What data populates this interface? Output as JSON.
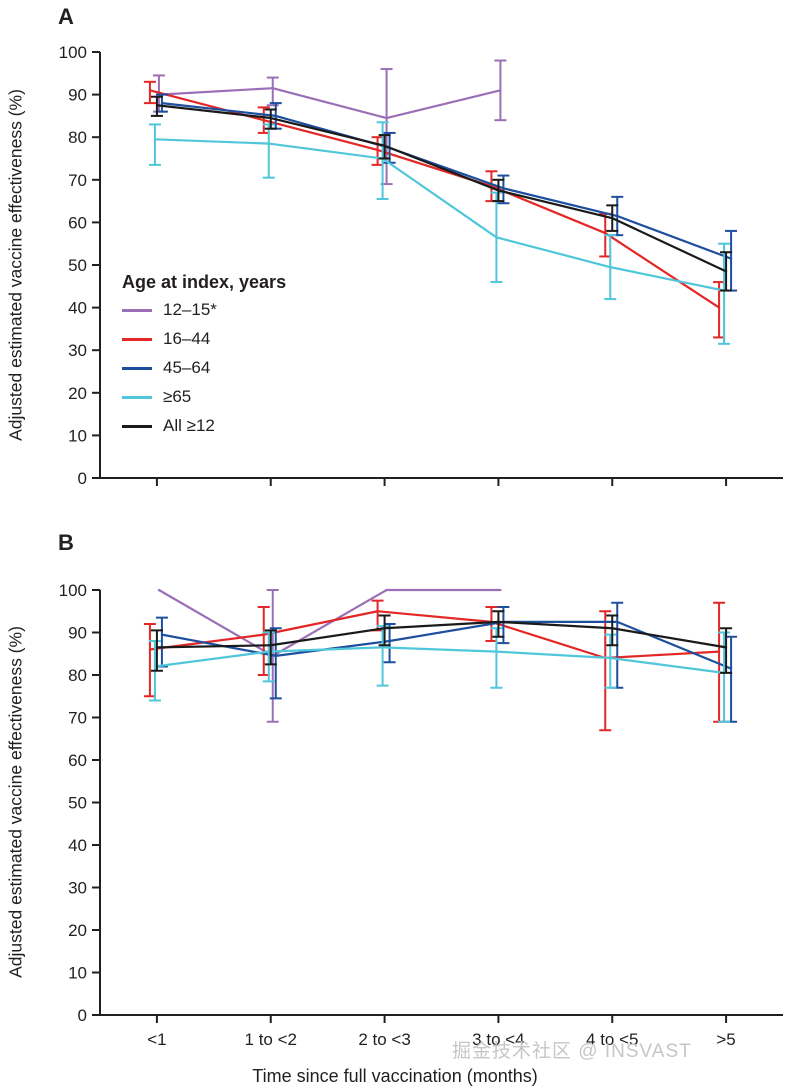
{
  "figure": {
    "panels": [
      {
        "label": "A"
      },
      {
        "label": "B"
      }
    ],
    "y_axis_label": "Adjusted estimated vaccine effectiveness (%)",
    "x_axis_label": "Time since full vaccination (months)",
    "watermark": "掘金技术社区 @ INSVAST"
  },
  "chart_data": [
    {
      "type": "line",
      "panel": "A",
      "title": "",
      "categories": [
        "<1",
        "1 to <2",
        "2 to <3",
        "3 to <4",
        "4 to <5",
        ">5"
      ],
      "ylim": [
        0,
        100
      ],
      "ytick_step": 10,
      "grid": false,
      "legend_title": "Age at index, years",
      "legend_position": "left-middle-inside",
      "error_bars": true,
      "series": [
        {
          "name": "12–15*",
          "color": "#9b6fb6",
          "values": [
            90,
            91.5,
            84.5,
            91,
            null,
            null
          ],
          "lower": [
            86,
            87.5,
            69,
            84,
            null,
            null
          ],
          "upper": [
            94.5,
            94,
            96,
            98,
            null,
            null
          ]
        },
        {
          "name": "16–44",
          "color": "#e32726",
          "values": [
            91,
            84,
            77,
            68.5,
            57.5,
            40
          ],
          "lower": [
            88,
            81,
            73.5,
            65,
            52,
            33
          ],
          "upper": [
            93,
            87,
            80,
            72,
            62,
            46
          ]
        },
        {
          "name": "45–64",
          "color": "#1e4f9e",
          "values": [
            88,
            85,
            77.5,
            68,
            61.5,
            51.5
          ],
          "lower": [
            86,
            82,
            74,
            64.5,
            57,
            44
          ],
          "upper": [
            90,
            88,
            81,
            71,
            66,
            58
          ]
        },
        {
          "name": "≥65",
          "color": "#4fc6da",
          "values": [
            79.5,
            78.5,
            75,
            56.5,
            49.5,
            44
          ],
          "lower": [
            73.5,
            70.5,
            65.5,
            46,
            42,
            31.5
          ],
          "upper": [
            83,
            83,
            83.5,
            67,
            57,
            55
          ]
        },
        {
          "name": "All ≥12",
          "color": "#1a1a1a",
          "values": [
            87.5,
            84.5,
            78,
            67.5,
            61,
            48.5
          ],
          "lower": [
            85,
            82,
            75,
            65,
            58,
            44
          ],
          "upper": [
            89.5,
            86.5,
            80.5,
            70,
            64,
            53
          ]
        }
      ]
    },
    {
      "type": "line",
      "panel": "B",
      "title": "",
      "categories": [
        "<1",
        "1 to <2",
        "2 to <3",
        "3 to <4",
        "4 to <5",
        ">5"
      ],
      "ylim": [
        0,
        100
      ],
      "ytick_step": 10,
      "grid": false,
      "legend_title": "",
      "legend_position": "none",
      "error_bars": true,
      "series": [
        {
          "name": "12–15*",
          "color": "#9b6fb6",
          "values": [
            100,
            84.5,
            100,
            100,
            null,
            null
          ],
          "lower": [
            null,
            69,
            null,
            null,
            null,
            null
          ],
          "upper": [
            null,
            100,
            null,
            null,
            null,
            null
          ]
        },
        {
          "name": "16–44",
          "color": "#e32726",
          "values": [
            86,
            89.5,
            95,
            92.5,
            84,
            85.5
          ],
          "lower": [
            75,
            80,
            90.5,
            88,
            67,
            69
          ],
          "upper": [
            92,
            96,
            97.5,
            96,
            95,
            97
          ]
        },
        {
          "name": "45–64",
          "color": "#1e4f9e",
          "values": [
            89.5,
            84.5,
            88,
            92.5,
            92.5,
            81.5
          ],
          "lower": [
            82,
            74.5,
            83,
            87.5,
            77,
            69
          ],
          "upper": [
            93.5,
            91,
            92,
            96,
            97,
            89
          ]
        },
        {
          "name": "≥65",
          "color": "#4fc6da",
          "values": [
            82,
            85.5,
            86.5,
            85.5,
            84,
            80.5
          ],
          "lower": [
            74,
            78.5,
            77.5,
            77,
            77,
            69
          ],
          "upper": [
            88,
            90,
            91.5,
            91,
            89.5,
            90
          ]
        },
        {
          "name": "All ≥12",
          "color": "#1a1a1a",
          "values": [
            86.5,
            87,
            91,
            92.5,
            91,
            86.5
          ],
          "lower": [
            81,
            82.5,
            87,
            89,
            87,
            80.5
          ],
          "upper": [
            90.5,
            90.5,
            94,
            95,
            94,
            91
          ]
        }
      ]
    }
  ]
}
